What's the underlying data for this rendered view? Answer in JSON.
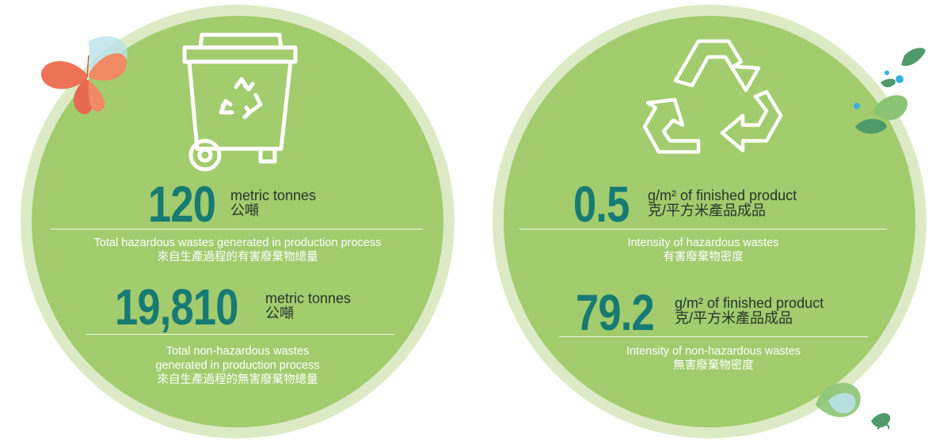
{
  "left_panel": {
    "stat_1": {
      "value": "120",
      "unit_en": "metric tonnes",
      "unit_zh": "公噸",
      "caption_en": "Total hazardous wastes generated in production process",
      "caption_zh": "來自生產過程的有害廢棄物總量"
    },
    "stat_2": {
      "value": "19,810",
      "unit_en": "metric tonnes",
      "unit_zh": "公噸",
      "caption_en_1": "Total non-hazardous wastes",
      "caption_en_2": "generated in production process",
      "caption_zh": "來自生產過程的無害廢棄物總量"
    },
    "icon": "recycle-bin-icon"
  },
  "right_panel": {
    "stat_1": {
      "value": "0.5",
      "unit_en": "g/m² of finished product",
      "unit_zh": "克/平方米產品成品",
      "caption_en": "Intensity of  hazardous wastes",
      "caption_zh": "有害廢棄物密度"
    },
    "stat_2": {
      "value": "79.2",
      "unit_en": "g/m² of finished product",
      "unit_zh": "克/平方米產品成品",
      "caption_en": "Intensity of non-hazardous wastes",
      "caption_zh": "無害廢棄物密度"
    },
    "icon": "recycle-symbol-icon"
  },
  "colors": {
    "circle_fill": "#a2cc6e",
    "circle_ring": "#dcebc5",
    "number": "#177a73",
    "caption": "#ffffff",
    "butterfly": "#ee7356",
    "leaf_dark": "#4f9a6a",
    "leaf_light": "#8cc474",
    "droplet": "#36b0e0"
  }
}
